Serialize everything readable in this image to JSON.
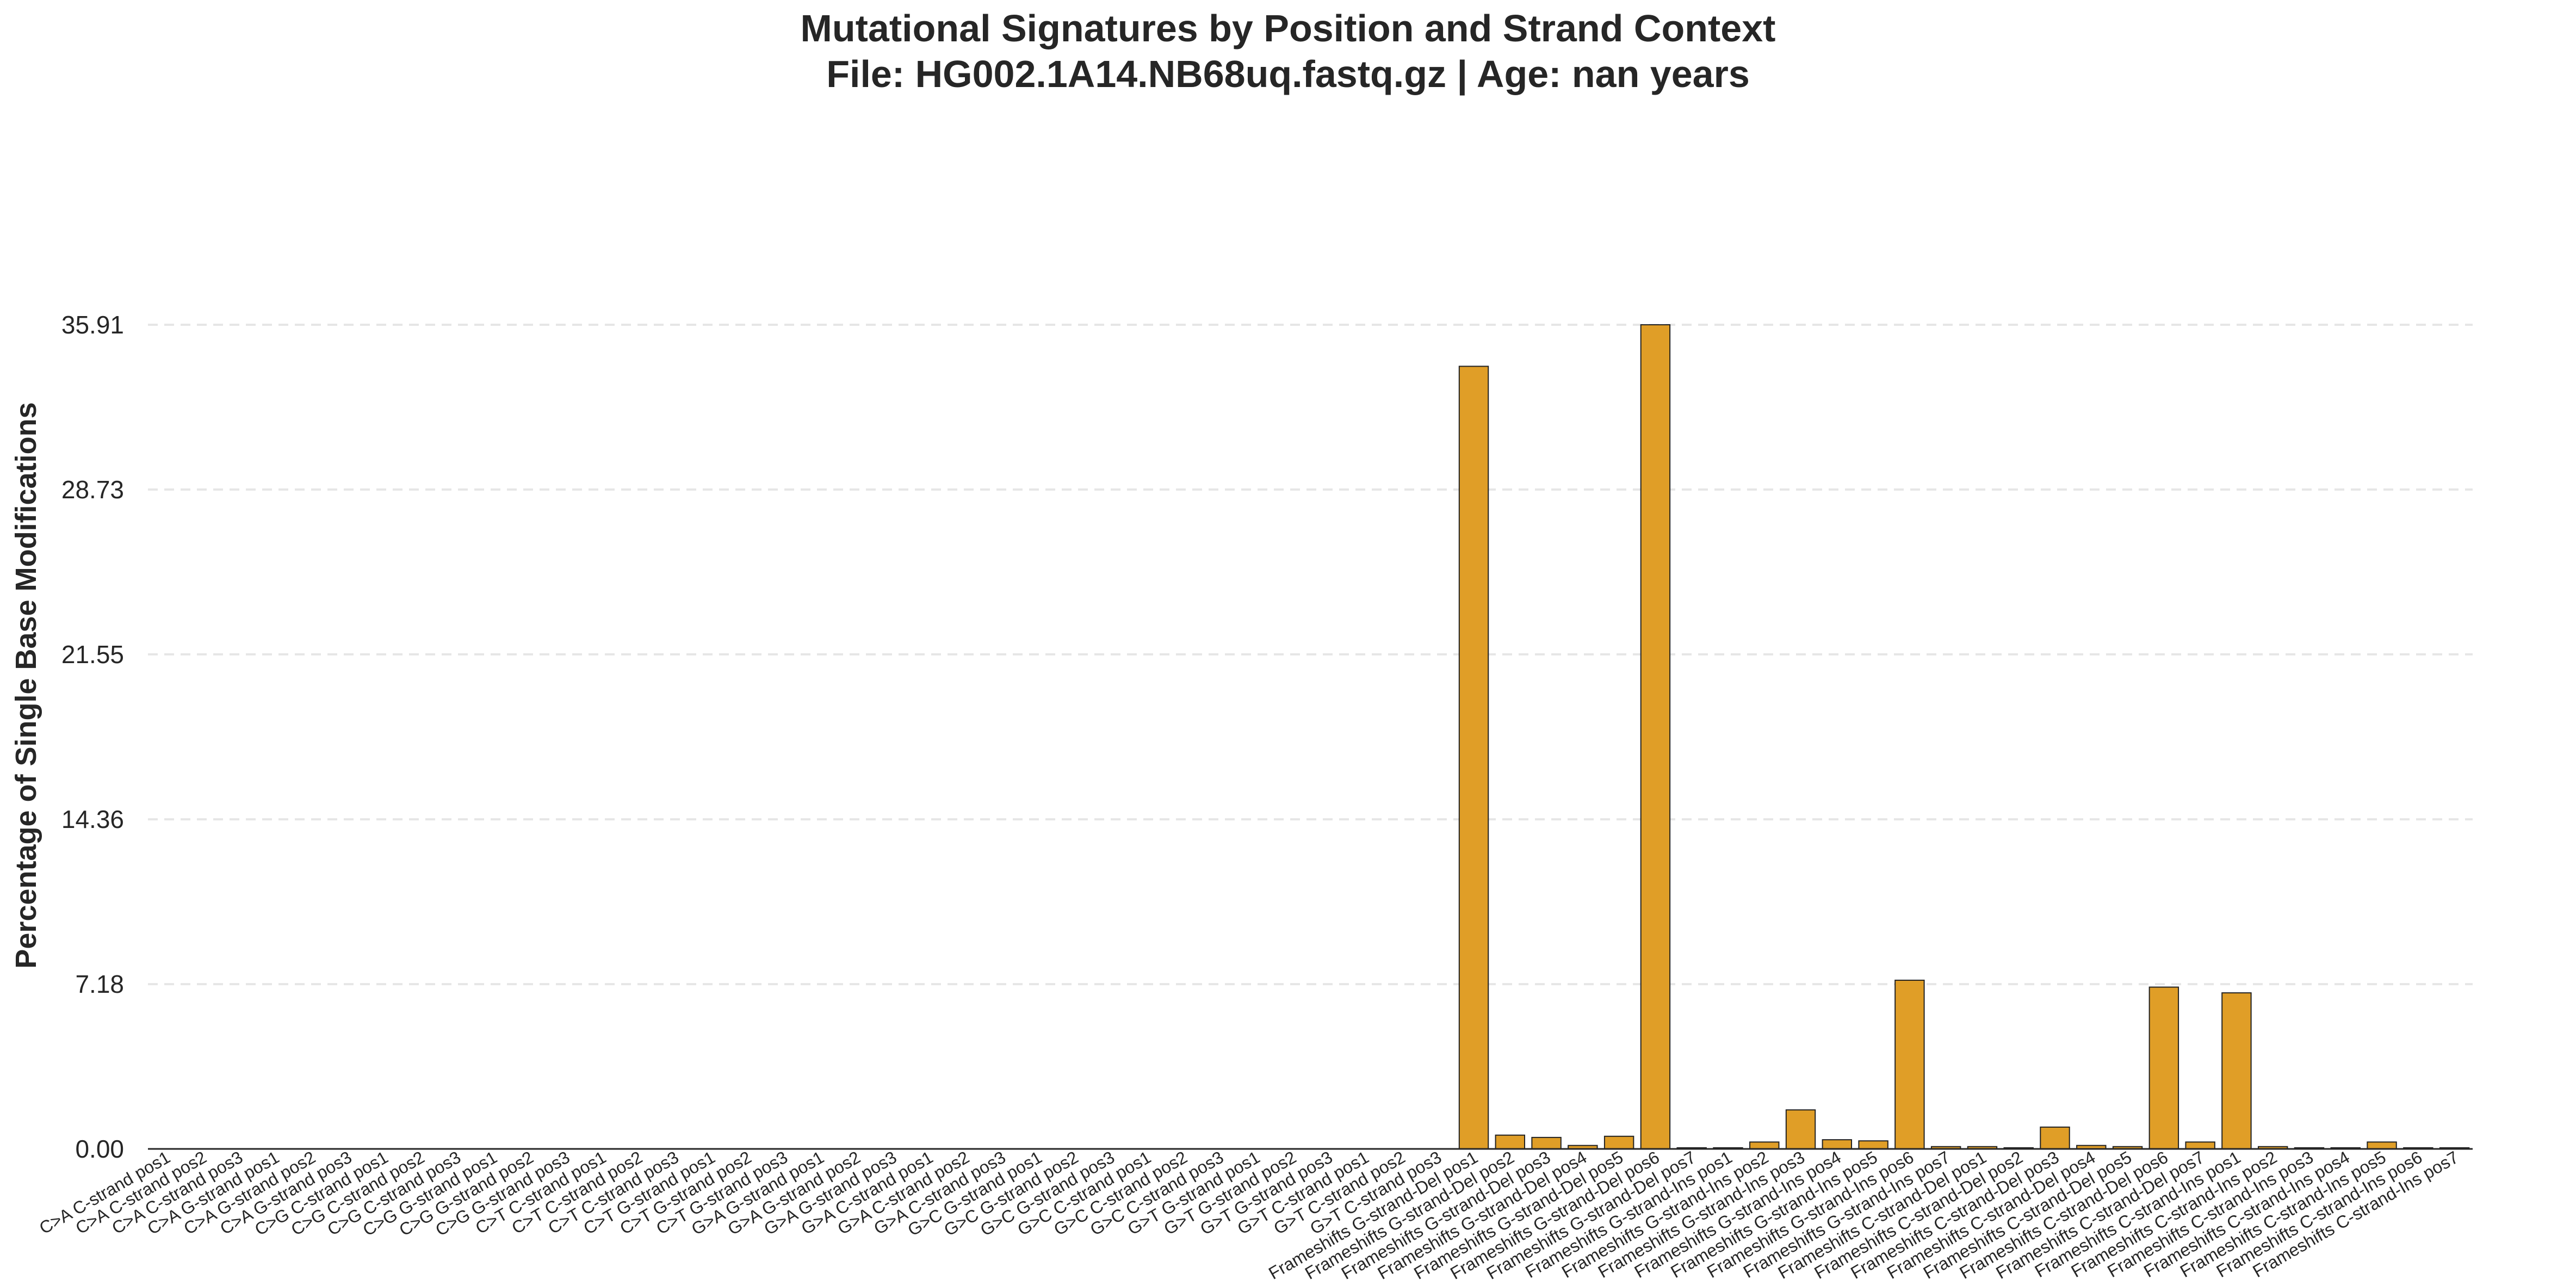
{
  "chart_data": {
    "type": "bar",
    "title": "Mutational Signatures by Position and Strand Context",
    "subtitle": "File: HG002.1A14.NB68uq.fastq.gz | Age: nan years",
    "xlabel": "",
    "ylabel": "Percentage of Single Base Modifications",
    "ylim": [
      0,
      35.91
    ],
    "yticks": [
      "0.00",
      "7.18",
      "14.36",
      "21.55",
      "28.73",
      "35.91"
    ],
    "grid": "horizontal dashed",
    "legend": "none",
    "bar_color": "#E09E27",
    "bar_edge_color": "#222222",
    "categories": [
      "C>A C-strand pos1",
      "C>A C-strand pos2",
      "C>A C-strand pos3",
      "C>A G-strand pos1",
      "C>A G-strand pos2",
      "C>A G-strand pos3",
      "C>G C-strand pos1",
      "C>G C-strand pos2",
      "C>G C-strand pos3",
      "C>G G-strand pos1",
      "C>G G-strand pos2",
      "C>G G-strand pos3",
      "C>T C-strand pos1",
      "C>T C-strand pos2",
      "C>T C-strand pos3",
      "C>T G-strand pos1",
      "C>T G-strand pos2",
      "C>T G-strand pos3",
      "G>A G-strand pos1",
      "G>A G-strand pos2",
      "G>A G-strand pos3",
      "G>A C-strand pos1",
      "G>A C-strand pos2",
      "G>A C-strand pos3",
      "G>C G-strand pos1",
      "G>C G-strand pos2",
      "G>C G-strand pos3",
      "G>C C-strand pos1",
      "G>C C-strand pos2",
      "G>C C-strand pos3",
      "G>T G-strand pos1",
      "G>T G-strand pos2",
      "G>T G-strand pos3",
      "G>T C-strand pos1",
      "G>T C-strand pos2",
      "G>T C-strand pos3",
      "Frameshifts G-strand-Del pos1",
      "Frameshifts G-strand-Del pos2",
      "Frameshifts G-strand-Del pos3",
      "Frameshifts G-strand-Del pos4",
      "Frameshifts G-strand-Del pos5",
      "Frameshifts G-strand-Del pos6",
      "Frameshifts G-strand-Del pos7",
      "Frameshifts G-strand-Ins pos1",
      "Frameshifts G-strand-Ins pos2",
      "Frameshifts G-strand-Ins pos3",
      "Frameshifts G-strand-Ins pos4",
      "Frameshifts G-strand-Ins pos5",
      "Frameshifts G-strand-Ins pos6",
      "Frameshifts G-strand-Ins pos7",
      "Frameshifts C-strand-Del pos1",
      "Frameshifts C-strand-Del pos2",
      "Frameshifts C-strand-Del pos3",
      "Frameshifts C-strand-Del pos4",
      "Frameshifts C-strand-Del pos5",
      "Frameshifts C-strand-Del pos6",
      "Frameshifts C-strand-Del pos7",
      "Frameshifts C-strand-Ins pos1",
      "Frameshifts C-strand-Ins pos2",
      "Frameshifts C-strand-Ins pos3",
      "Frameshifts C-strand-Ins pos4",
      "Frameshifts C-strand-Ins pos5",
      "Frameshifts C-strand-Ins pos6",
      "Frameshifts C-strand-Ins pos7"
    ],
    "values": [
      0,
      0,
      0,
      0,
      0,
      0,
      0,
      0,
      0,
      0,
      0,
      0,
      0,
      0,
      0,
      0,
      0,
      0,
      0,
      0,
      0,
      0,
      0,
      0,
      0,
      0,
      0,
      0,
      0,
      0,
      0,
      0,
      0,
      0,
      0,
      0,
      34.1,
      0.6,
      0.5,
      0.15,
      0.55,
      35.91,
      0.05,
      0.05,
      0.3,
      1.7,
      0.4,
      0.35,
      7.35,
      0.1,
      0.1,
      0.05,
      0.95,
      0.15,
      0.1,
      7.05,
      0.3,
      6.8,
      0.1,
      0.05,
      0.05,
      0.3,
      0.05,
      0.05
    ]
  }
}
